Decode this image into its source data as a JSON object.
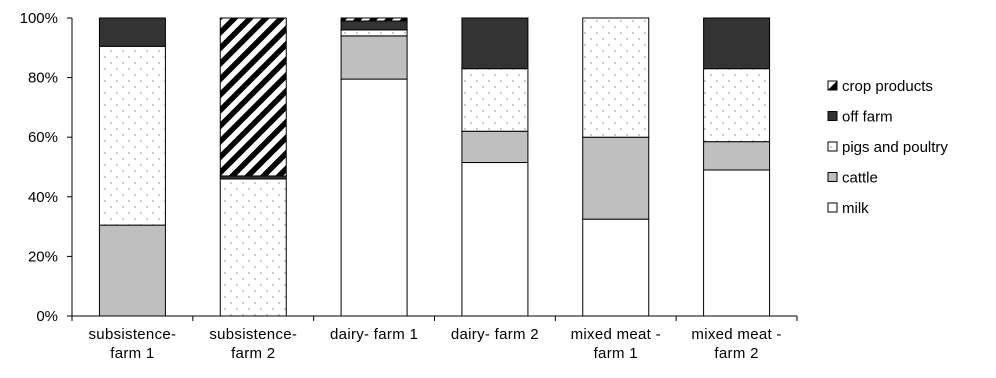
{
  "chart_data": {
    "type": "bar",
    "stacked": "percent",
    "categories": [
      [
        "subsistence-",
        "farm 1"
      ],
      [
        "subsistence-",
        "farm 2"
      ],
      [
        "dairy- farm 1"
      ],
      [
        "dairy- farm 2"
      ],
      [
        "mixed meat -",
        "farm 1"
      ],
      [
        "mixed meat -",
        "farm 2"
      ]
    ],
    "series": [
      {
        "name": "milk",
        "pattern": "white",
        "values": [
          0,
          0,
          79.5,
          51.5,
          32.5,
          49
        ]
      },
      {
        "name": "cattle",
        "pattern": "gray",
        "values": [
          30.5,
          0,
          14.5,
          10.5,
          27.5,
          9.5
        ]
      },
      {
        "name": "pigs and poultry",
        "pattern": "dots",
        "values": [
          60,
          46,
          2,
          21,
          40,
          24.5
        ]
      },
      {
        "name": "off farm",
        "pattern": "dark",
        "values": [
          9.5,
          1,
          3,
          17,
          0,
          17
        ]
      },
      {
        "name": "crop products",
        "pattern": "hatch",
        "values": [
          0,
          53,
          1,
          0,
          0,
          0
        ]
      }
    ],
    "legend_order": [
      "crop products",
      "off farm",
      "pigs and poultry",
      "cattle",
      "milk"
    ],
    "yticks": [
      "0%",
      "20%",
      "40%",
      "60%",
      "80%",
      "100%"
    ],
    "ylim": [
      0,
      100
    ],
    "legend_position": "right",
    "grid": false,
    "colors": {
      "dark": "#333333",
      "gray": "#bfbfbf",
      "dot": "#a6a6a6",
      "white": "#ffffff"
    }
  }
}
